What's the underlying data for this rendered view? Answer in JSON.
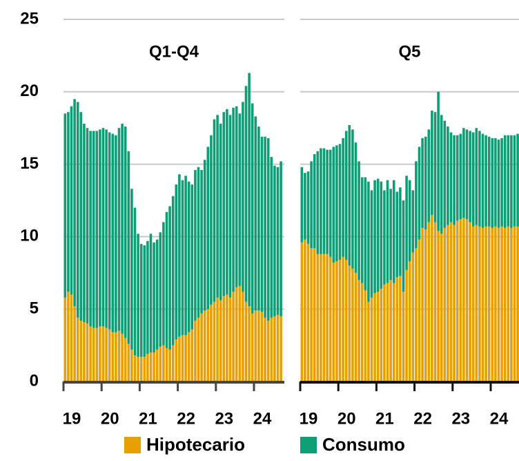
{
  "chart_data": [
    {
      "type": "bar",
      "stacked": true,
      "title": "Q1-Q4",
      "categories": [
        "19",
        null,
        null,
        null,
        null,
        null,
        null,
        null,
        null,
        null,
        null,
        null,
        "20",
        null,
        null,
        null,
        null,
        null,
        null,
        null,
        null,
        null,
        null,
        null,
        "21",
        null,
        null,
        null,
        null,
        null,
        null,
        null,
        null,
        null,
        null,
        null,
        "22",
        null,
        null,
        null,
        null,
        null,
        null,
        null,
        null,
        null,
        null,
        null,
        "23",
        null,
        null,
        null,
        null,
        null,
        null,
        null,
        null,
        null,
        null,
        null,
        "24",
        null,
        null,
        null,
        null,
        null,
        null,
        null,
        null
      ],
      "series": [
        {
          "name": "Hipotecario",
          "color": "#e8a000",
          "values": [
            5.8,
            6.2,
            6.0,
            5.2,
            4.4,
            4.2,
            4.1,
            4.0,
            3.8,
            3.7,
            3.7,
            3.8,
            3.8,
            3.7,
            3.6,
            3.4,
            3.4,
            3.5,
            3.3,
            3.0,
            2.6,
            2.2,
            1.8,
            1.7,
            1.7,
            1.7,
            1.9,
            2.0,
            2.0,
            2.2,
            2.4,
            2.5,
            2.3,
            2.2,
            2.5,
            2.9,
            3.1,
            3.2,
            3.2,
            3.4,
            3.6,
            4.2,
            4.4,
            4.7,
            4.9,
            5.0,
            5.3,
            5.5,
            5.8,
            5.6,
            5.9,
            6.0,
            5.8,
            6.2,
            6.5,
            6.6,
            6.2,
            5.5,
            5.2,
            4.7,
            4.9,
            4.9,
            4.8,
            4.4,
            4.2,
            4.4,
            4.5,
            4.6,
            4.5
          ]
        },
        {
          "name": "Consumo",
          "color": "#0e9e76",
          "values": [
            12.7,
            12.4,
            13.0,
            14.3,
            14.9,
            14.4,
            13.7,
            13.5,
            13.5,
            13.6,
            13.6,
            13.6,
            13.7,
            13.7,
            13.6,
            13.7,
            13.6,
            14.0,
            14.5,
            14.6,
            13.3,
            11.1,
            10.2,
            8.5,
            7.8,
            7.7,
            7.8,
            8.2,
            7.6,
            7.6,
            7.9,
            8.5,
            9.4,
            9.9,
            10.3,
            10.7,
            11.2,
            10.7,
            11.0,
            10.4,
            10.0,
            10.4,
            10.4,
            9.9,
            10.4,
            11.2,
            11.7,
            12.6,
            12.6,
            12.2,
            12.7,
            12.8,
            12.6,
            12.7,
            12.5,
            11.9,
            13.1,
            14.9,
            16.1,
            14.5,
            13.4,
            12.7,
            12.1,
            12.5,
            12.6,
            11.1,
            10.4,
            10.2,
            10.7
          ]
        }
      ],
      "ylim": [
        0,
        25
      ],
      "yticks": [
        0,
        5,
        10,
        15,
        20,
        25
      ],
      "grid": true
    },
    {
      "type": "bar",
      "stacked": true,
      "title": "Q5",
      "categories": [
        "19",
        null,
        null,
        null,
        null,
        null,
        null,
        null,
        null,
        null,
        null,
        null,
        "20",
        null,
        null,
        null,
        null,
        null,
        null,
        null,
        null,
        null,
        null,
        null,
        "21",
        null,
        null,
        null,
        null,
        null,
        null,
        null,
        null,
        null,
        null,
        null,
        "22",
        null,
        null,
        null,
        null,
        null,
        null,
        null,
        null,
        null,
        null,
        null,
        "23",
        null,
        null,
        null,
        null,
        null,
        null,
        null,
        null,
        null,
        null,
        null,
        "24",
        null,
        null,
        null,
        null,
        null,
        null,
        null,
        null
      ],
      "series": [
        {
          "color": "#e8a000",
          "values": [
            9.6,
            9.8,
            9.5,
            9.2,
            9.2,
            8.8,
            8.8,
            8.8,
            8.8,
            8.6,
            8.2,
            8.3,
            8.4,
            8.6,
            8.4,
            8.0,
            7.8,
            7.5,
            7.0,
            6.8,
            6.3,
            5.5,
            5.8,
            6.1,
            6.2,
            6.4,
            6.7,
            6.8,
            7.0,
            6.8,
            7.2,
            7.3,
            6.2,
            7.7,
            8.3,
            8.9,
            9.2,
            9.8,
            10.6,
            10.5,
            11.0,
            11.5,
            11.0,
            10.4,
            10.2,
            10.6,
            10.8,
            11.0,
            10.8,
            11.1,
            11.2,
            11.3,
            11.2,
            11.0,
            10.7,
            10.8,
            10.7,
            10.6,
            10.7,
            10.7,
            10.6,
            10.7,
            10.6,
            10.7,
            10.6,
            10.7,
            10.6,
            10.7,
            10.7
          ]
        },
        {
          "color": "#0e9e76",
          "values": [
            5.2,
            4.6,
            5.0,
            6.0,
            6.5,
            7.1,
            7.3,
            7.3,
            7.2,
            7.4,
            8.0,
            8.0,
            8.0,
            8.2,
            8.9,
            9.7,
            9.6,
            9.0,
            8.2,
            7.3,
            7.8,
            8.3,
            7.4,
            7.8,
            7.8,
            7.4,
            6.5,
            7.1,
            6.3,
            7.1,
            5.9,
            6.1,
            6.3,
            6.5,
            5.6,
            4.3,
            6.0,
            6.4,
            6.2,
            6.4,
            6.4,
            7.2,
            7.6,
            9.6,
            8.2,
            7.4,
            6.8,
            6.2,
            6.2,
            5.9,
            5.9,
            6.2,
            6.2,
            6.3,
            6.5,
            6.7,
            6.6,
            6.5,
            6.3,
            6.2,
            6.2,
            6.1,
            6.1,
            6.1,
            6.4,
            6.3,
            6.4,
            6.3,
            6.4
          ]
        }
      ],
      "ylim": [
        0,
        25
      ],
      "yticks": [
        0,
        5,
        10,
        15,
        20,
        25
      ],
      "grid": true
    }
  ]
}
